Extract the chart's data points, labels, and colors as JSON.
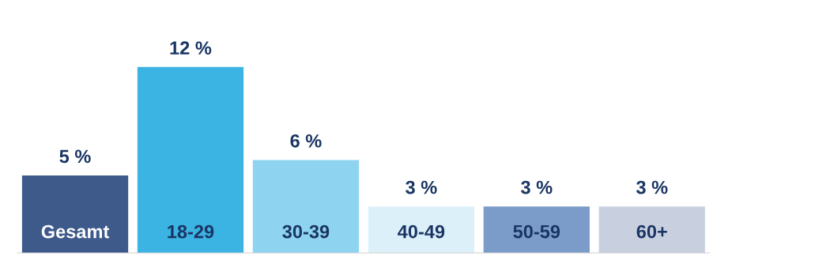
{
  "chart_data": {
    "type": "bar",
    "categories": [
      "Gesamt",
      "18-29",
      "30-39",
      "40-49",
      "50-59",
      "60+"
    ],
    "values": [
      5,
      12,
      6,
      3,
      3,
      3
    ],
    "colors": [
      "#3d5a8a",
      "#3bb4e4",
      "#8ed4f0",
      "#dcf0fa",
      "#7b9bc8",
      "#c8d0e0"
    ],
    "value_labels": [
      "5 %",
      "12 %",
      "6 %",
      "3 %",
      "3 %",
      "3 %"
    ]
  }
}
